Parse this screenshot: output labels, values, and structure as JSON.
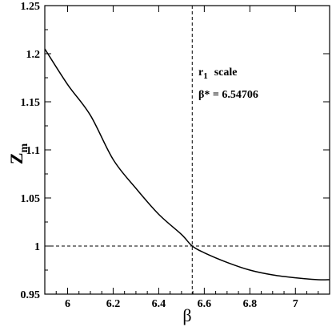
{
  "chart_data": {
    "type": "line",
    "xlabel": "β",
    "ylabel_main": "Z",
    "ylabel_sub": "m",
    "xlim": [
      5.9,
      7.15
    ],
    "ylim": [
      0.95,
      1.25
    ],
    "xticks": [
      {
        "v": 6,
        "label": "6"
      },
      {
        "v": 6.2,
        "label": "6.2"
      },
      {
        "v": 6.4,
        "label": "6.4"
      },
      {
        "v": 6.6,
        "label": "6.6"
      },
      {
        "v": 6.8,
        "label": "6.8"
      },
      {
        "v": 7,
        "label": "7"
      }
    ],
    "yticks": [
      {
        "v": 0.95,
        "label": "0.95"
      },
      {
        "v": 1.0,
        "label": "1"
      },
      {
        "v": 1.05,
        "label": "1.05"
      },
      {
        "v": 1.1,
        "label": "1.1"
      },
      {
        "v": 1.15,
        "label": "1.15"
      },
      {
        "v": 1.2,
        "label": "1.2"
      },
      {
        "v": 1.25,
        "label": "1.25"
      }
    ],
    "series": [
      {
        "x": [
          5.9,
          6.0,
          6.1,
          6.2,
          6.3,
          6.4,
          6.5,
          6.54706,
          6.6,
          6.7,
          6.8,
          6.9,
          7.0,
          7.1,
          7.15
        ],
        "y": [
          1.205,
          1.168,
          1.136,
          1.09,
          1.06,
          1.033,
          1.012,
          1.0,
          0.993,
          0.983,
          0.975,
          0.97,
          0.967,
          0.965,
          0.965
        ]
      }
    ],
    "reference_lines": {
      "vertical_x": 6.54706,
      "horizontal_y": 1.0
    },
    "annotations": {
      "scale_r": "r",
      "scale_sub": "1",
      "scale_word": "scale",
      "beta_star": "β* = 6.54706"
    },
    "grid": false,
    "legend": "none"
  }
}
